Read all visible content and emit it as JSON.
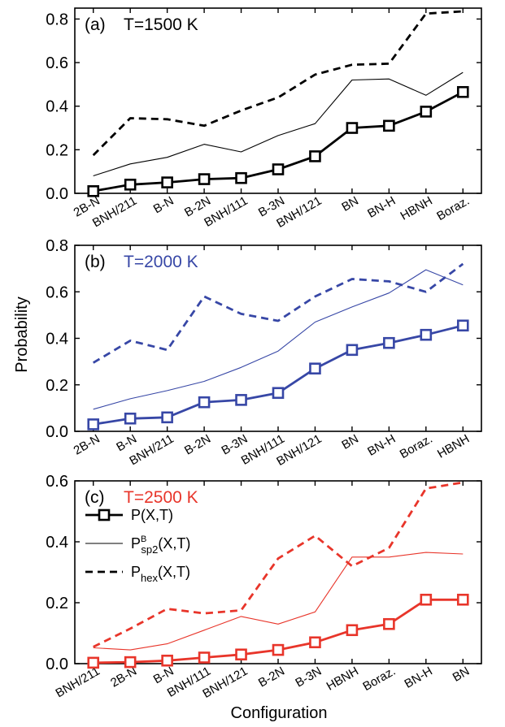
{
  "ylabel": "Probability",
  "xlabel": "Configuration",
  "legend": [
    {
      "key": "P",
      "label": "P(X,T)",
      "style": "thick-square"
    },
    {
      "key": "Psp2",
      "label_main": "P",
      "label_sup": "B",
      "label_sub": "sp2",
      "label_tail": "(X,T)",
      "style": "thin"
    },
    {
      "key": "Phex",
      "label_main": "P",
      "label_sub": "hex",
      "label_tail": "(X,T)",
      "style": "dashed"
    }
  ],
  "chart_data": [
    {
      "type": "line",
      "panel": "(a)",
      "title": "T=1500 K",
      "color": "#000000",
      "ylim": [
        0,
        0.85
      ],
      "yticks": [
        "0.0",
        "0.2",
        "0.4",
        "0.6",
        "0.8"
      ],
      "categories": [
        "2B-N",
        "BNH/211",
        "B-N",
        "B-2N",
        "BNH/111",
        "B-3N",
        "BNH/121",
        "BN",
        "BN-H",
        "HBNH",
        "Boraz."
      ],
      "series": [
        {
          "key": "P",
          "values": [
            0.01,
            0.04,
            0.05,
            0.065,
            0.07,
            0.11,
            0.17,
            0.3,
            0.31,
            0.375,
            0.465
          ]
        },
        {
          "key": "Psp2",
          "values": [
            0.08,
            0.135,
            0.165,
            0.225,
            0.19,
            0.265,
            0.32,
            0.52,
            0.525,
            0.45,
            0.555
          ]
        },
        {
          "key": "Phex",
          "values": [
            0.175,
            0.345,
            0.34,
            0.31,
            0.38,
            0.44,
            0.545,
            0.59,
            0.595,
            0.825,
            0.835
          ]
        }
      ]
    },
    {
      "type": "line",
      "panel": "(b)",
      "title": "T=2000 K",
      "color": "#3747a6",
      "ylim": [
        0,
        0.8
      ],
      "yticks": [
        "0.0",
        "0.2",
        "0.4",
        "0.6",
        "0.8"
      ],
      "categories": [
        "2B-N",
        "B-N",
        "BNH/211",
        "B-2N",
        "B-3N",
        "BNH/111",
        "BNH/121",
        "BN",
        "BN-H",
        "Boraz.",
        "HBNH"
      ],
      "series": [
        {
          "key": "P",
          "values": [
            0.03,
            0.055,
            0.06,
            0.125,
            0.135,
            0.165,
            0.27,
            0.35,
            0.38,
            0.415,
            0.455
          ]
        },
        {
          "key": "Psp2",
          "values": [
            0.095,
            0.14,
            0.175,
            0.215,
            0.275,
            0.345,
            0.47,
            0.535,
            0.595,
            0.695,
            0.63
          ]
        },
        {
          "key": "Phex",
          "values": [
            0.295,
            0.39,
            0.35,
            0.58,
            0.505,
            0.475,
            0.58,
            0.655,
            0.645,
            0.6,
            0.72
          ]
        }
      ]
    },
    {
      "type": "line",
      "panel": "(c)",
      "title": "T=2500 K",
      "color": "#e8352a",
      "ylim": [
        0,
        0.6
      ],
      "yticks": [
        "0.0",
        "0.2",
        "0.4",
        "0.6"
      ],
      "categories": [
        "BNH/211",
        "2B-N",
        "B-N",
        "BNH/111",
        "BNH/121",
        "B-2N",
        "B-3N",
        "HBNH",
        "Boraz.",
        "BN-H",
        "BN"
      ],
      "series": [
        {
          "key": "P",
          "values": [
            0.003,
            0.005,
            0.01,
            0.02,
            0.03,
            0.045,
            0.07,
            0.11,
            0.13,
            0.21,
            0.21
          ]
        },
        {
          "key": "Psp2",
          "values": [
            0.052,
            0.045,
            0.065,
            0.11,
            0.155,
            0.13,
            0.17,
            0.35,
            0.35,
            0.365,
            0.36
          ]
        },
        {
          "key": "Phex",
          "values": [
            0.055,
            0.115,
            0.18,
            0.165,
            0.175,
            0.345,
            0.42,
            0.32,
            0.38,
            0.575,
            0.595
          ]
        }
      ]
    }
  ]
}
